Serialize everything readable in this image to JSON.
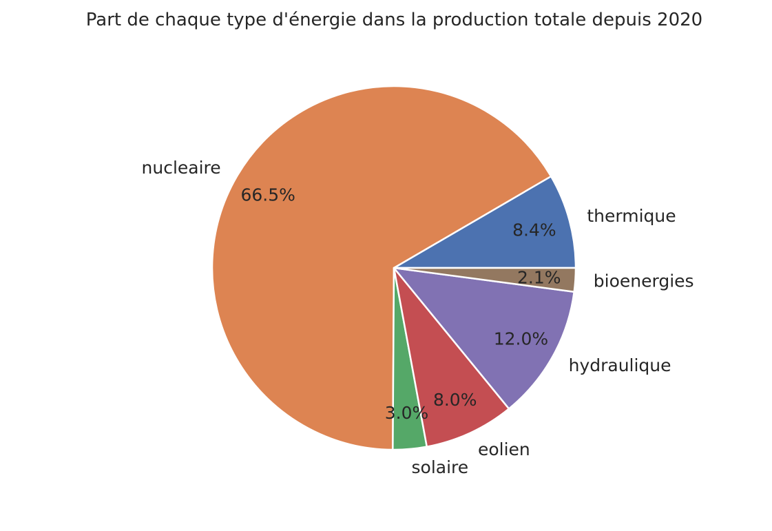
{
  "chart_data": {
    "type": "pie",
    "title": "Part de chaque type d'énergie dans la production totale depuis 2020",
    "slices": [
      {
        "label": "thermique",
        "percent_label": "8.4%",
        "value": 8.4,
        "color": "#4c72b0"
      },
      {
        "label": "nucleaire",
        "percent_label": "66.5%",
        "value": 66.5,
        "color": "#dd8452"
      },
      {
        "label": "solaire",
        "percent_label": "3.0%",
        "value": 3.0,
        "color": "#55a868"
      },
      {
        "label": "eolien",
        "percent_label": "8.0%",
        "value": 8.0,
        "color": "#c44e52"
      },
      {
        "label": "hydraulique",
        "percent_label": "12.0%",
        "value": 12.0,
        "color": "#8172b3"
      },
      {
        "label": "bioenergies",
        "percent_label": "2.1%",
        "value": 2.1,
        "color": "#937860"
      }
    ],
    "start_angle_deg": 0,
    "direction": "counterclockwise",
    "edge_color": "#ffffff"
  }
}
